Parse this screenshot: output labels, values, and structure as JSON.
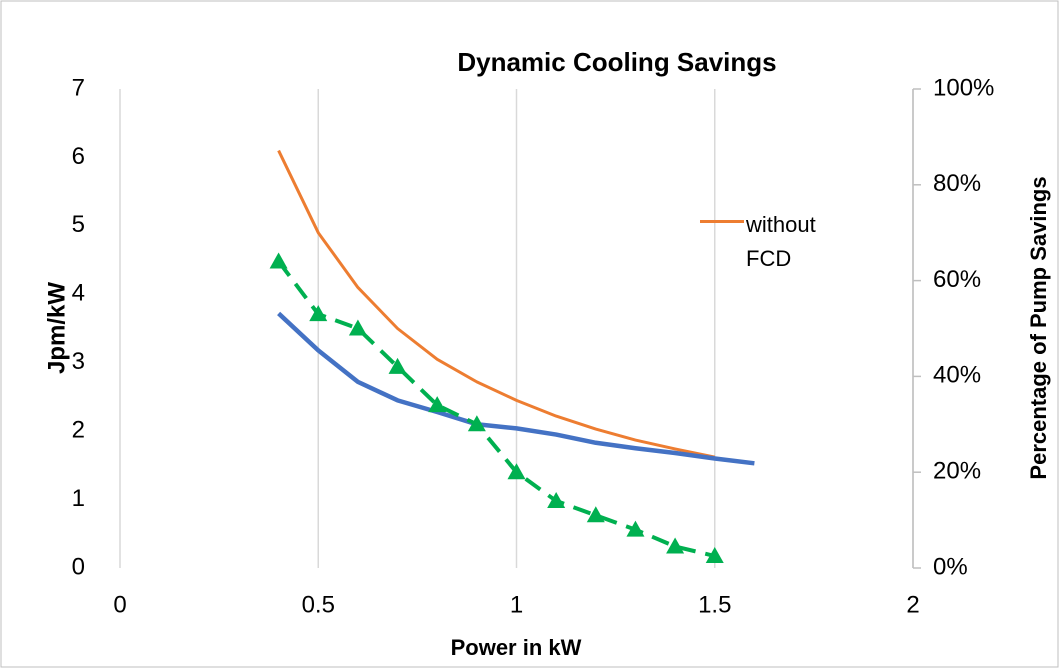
{
  "chart_data": {
    "type": "line",
    "title": "Dynamic Cooling Savings",
    "x_label": "Power in kW",
    "y_label": "Jpm/kW",
    "y2_label": "Percentage of Pump Savings",
    "xlim": [
      0,
      2
    ],
    "xticks": [
      0,
      0.5,
      1,
      1.5,
      2
    ],
    "ylim": [
      0,
      7
    ],
    "yticks": [
      0,
      1,
      2,
      3,
      4,
      5,
      6,
      7
    ],
    "y2lim": [
      0,
      100
    ],
    "y2ticks": [
      {
        "value": 0,
        "label": "0%"
      },
      {
        "value": 20,
        "label": "20%"
      },
      {
        "value": 40,
        "label": "40%"
      },
      {
        "value": 60,
        "label": "60%"
      },
      {
        "value": 80,
        "label": "80%"
      },
      {
        "value": 100,
        "label": "100%"
      }
    ],
    "grid": true,
    "series": [
      {
        "name": "without FCD",
        "color": "#ed7d31",
        "width": 3,
        "x": [
          0.4,
          0.5,
          0.6,
          0.7,
          0.8,
          0.9,
          1.0,
          1.1,
          1.2,
          1.3,
          1.4,
          1.5
        ],
        "values": [
          6.1,
          4.9,
          4.1,
          3.5,
          3.05,
          2.72,
          2.45,
          2.22,
          2.03,
          1.87,
          1.74,
          1.62
        ]
      },
      {
        "color": "#4472c4",
        "width": 4.5,
        "x": [
          0.4,
          0.5,
          0.6,
          0.7,
          0.8,
          0.9,
          1.0,
          1.1,
          1.2,
          1.3,
          1.4,
          1.5,
          1.6
        ],
        "values": [
          3.72,
          3.18,
          2.72,
          2.45,
          2.28,
          2.1,
          2.04,
          1.95,
          1.83,
          1.75,
          1.68,
          1.6,
          1.53
        ]
      },
      {
        "color": "#00b050",
        "axis": "y2",
        "dashed": true,
        "marker": "triangle",
        "width": 4,
        "x": [
          0.4,
          0.5,
          0.6,
          0.7,
          0.8,
          0.9,
          1.0,
          1.1,
          1.2,
          1.3,
          1.4,
          1.5
        ],
        "values": [
          64,
          53,
          50,
          42,
          34,
          30,
          20,
          14,
          11,
          8,
          4.5,
          2.5
        ]
      }
    ]
  }
}
